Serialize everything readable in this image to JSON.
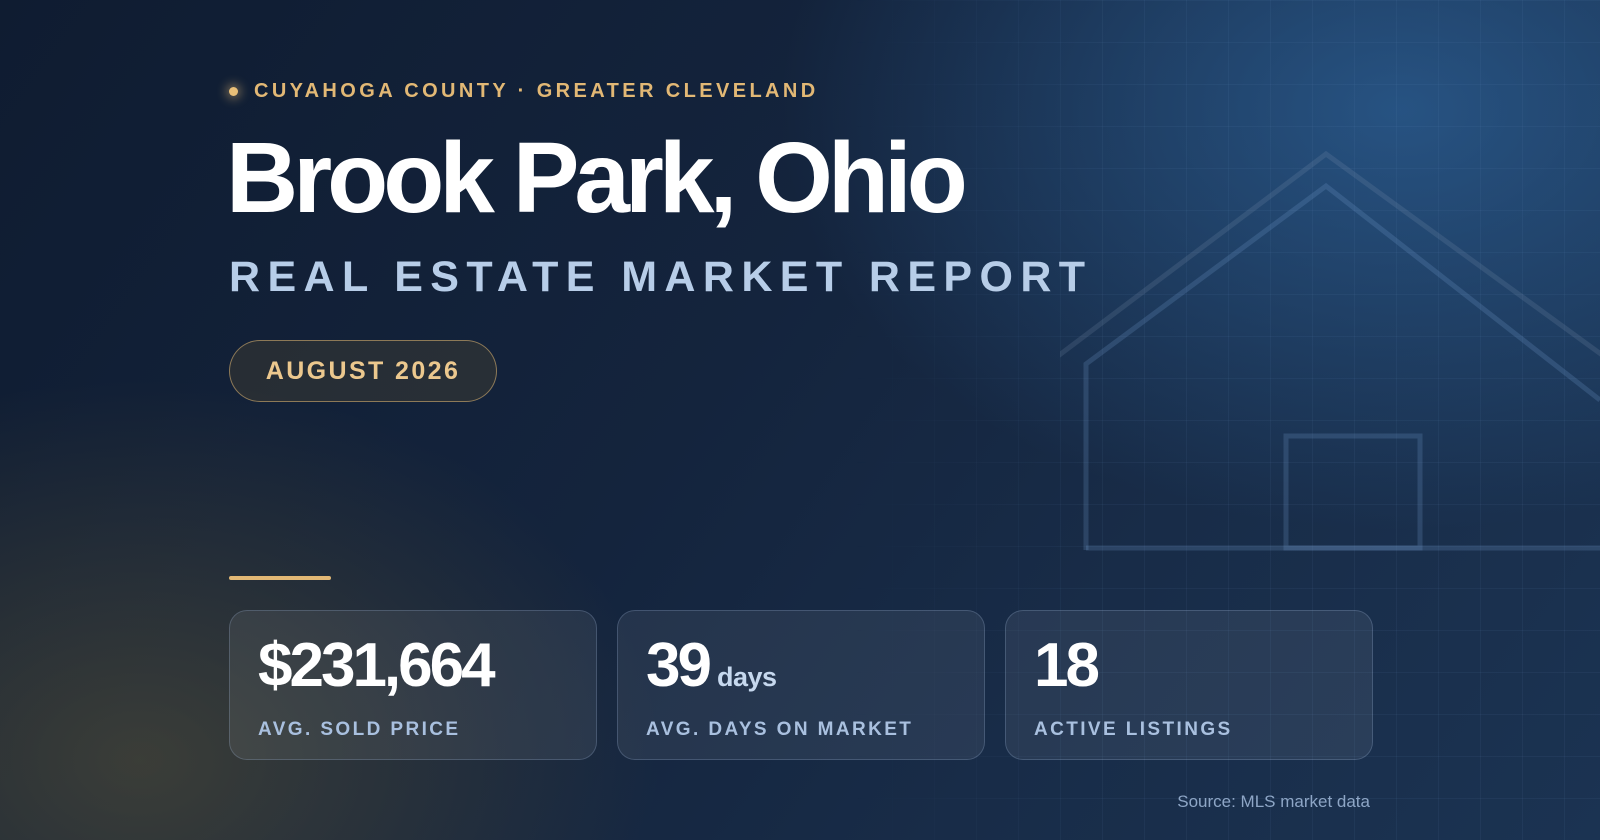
{
  "header": {
    "kicker": "CUYAHOGA COUNTY · GREATER CLEVELAND",
    "title": "Brook Park, Ohio",
    "subtitle": "REAL ESTATE MARKET REPORT",
    "date": "AUGUST 2026"
  },
  "stats": [
    {
      "value": "$231,664",
      "unit": "",
      "label": "AVG. SOLD PRICE"
    },
    {
      "value": "39",
      "unit": "days",
      "label": "AVG. DAYS ON MARKET"
    },
    {
      "value": "18",
      "unit": "",
      "label": "ACTIVE LISTINGS"
    }
  ],
  "footer": {
    "source": "Source: MLS market data"
  },
  "colors": {
    "background": "#14243d",
    "accent_gold": "#e2b875",
    "title": "#ffffff",
    "subtitle": "#b7cde8",
    "label": "#a9c0df"
  },
  "icons": {
    "bullet": "dot-icon",
    "background_art": "house-outline-icon"
  }
}
